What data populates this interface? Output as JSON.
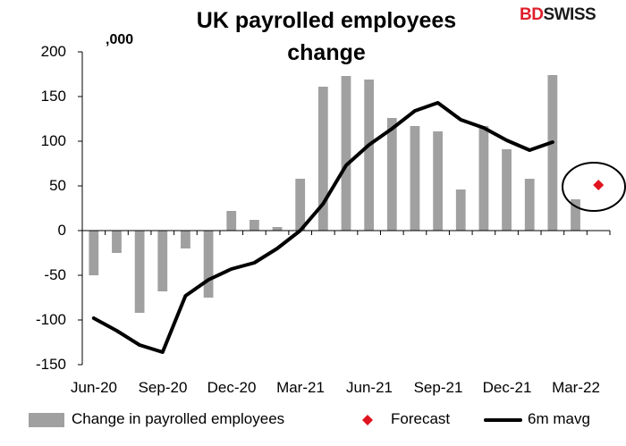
{
  "header": {
    "title_line1": "UK payrolled employees",
    "title_line2": "change",
    "unit": ",000"
  },
  "brand": {
    "logo_bd": "BD",
    "logo_swiss": "SWISS"
  },
  "colors": {
    "bars": "#a0a0a0",
    "line": "#000000",
    "forecast": "#e0141e",
    "brand_red": "#e01e2b"
  },
  "chart_data": {
    "type": "bar",
    "categories": [
      "Jun-20",
      "Jul-20",
      "Aug-20",
      "Sep-20",
      "Oct-20",
      "Nov-20",
      "Dec-20",
      "Jan-21",
      "Feb-21",
      "Mar-21",
      "Apr-21",
      "May-21",
      "Jun-21",
      "Jul-21",
      "Aug-21",
      "Sep-21",
      "Oct-21",
      "Nov-21",
      "Dec-21",
      "Jan-22",
      "Feb-22",
      "Mar-22",
      "Apr-22"
    ],
    "x_tick_labels": [
      "Jun-20",
      "Sep-20",
      "Dec-20",
      "Mar-21",
      "Jun-21",
      "Sep-21",
      "Dec-21",
      "Mar-22"
    ],
    "y_tick_labels": [
      "200",
      "150",
      "100",
      "50",
      "0",
      "-50",
      "-100",
      "-150"
    ],
    "ylim": [
      -150,
      200
    ],
    "series": [
      {
        "name": "Change in payrolled employees",
        "type": "bar",
        "values": [
          -50,
          -25,
          -92,
          -68,
          -20,
          -75,
          22,
          12,
          4,
          58,
          161,
          173,
          169,
          126,
          117,
          111,
          46,
          117,
          91,
          58,
          174,
          35,
          null
        ]
      },
      {
        "name": "Forecast",
        "type": "scatter",
        "values": [
          null,
          null,
          null,
          null,
          null,
          null,
          null,
          null,
          null,
          null,
          null,
          null,
          null,
          null,
          null,
          null,
          null,
          null,
          null,
          null,
          null,
          null,
          51
        ]
      },
      {
        "name": "6m mavg",
        "type": "line",
        "values": [
          -98,
          -112,
          -128,
          -136,
          -73,
          -55,
          -43,
          -36,
          -20,
          0,
          30,
          73,
          96,
          114,
          134,
          143,
          124,
          115,
          101,
          90,
          99,
          null,
          null
        ]
      }
    ],
    "legend_position": "bottom",
    "grid": false
  }
}
